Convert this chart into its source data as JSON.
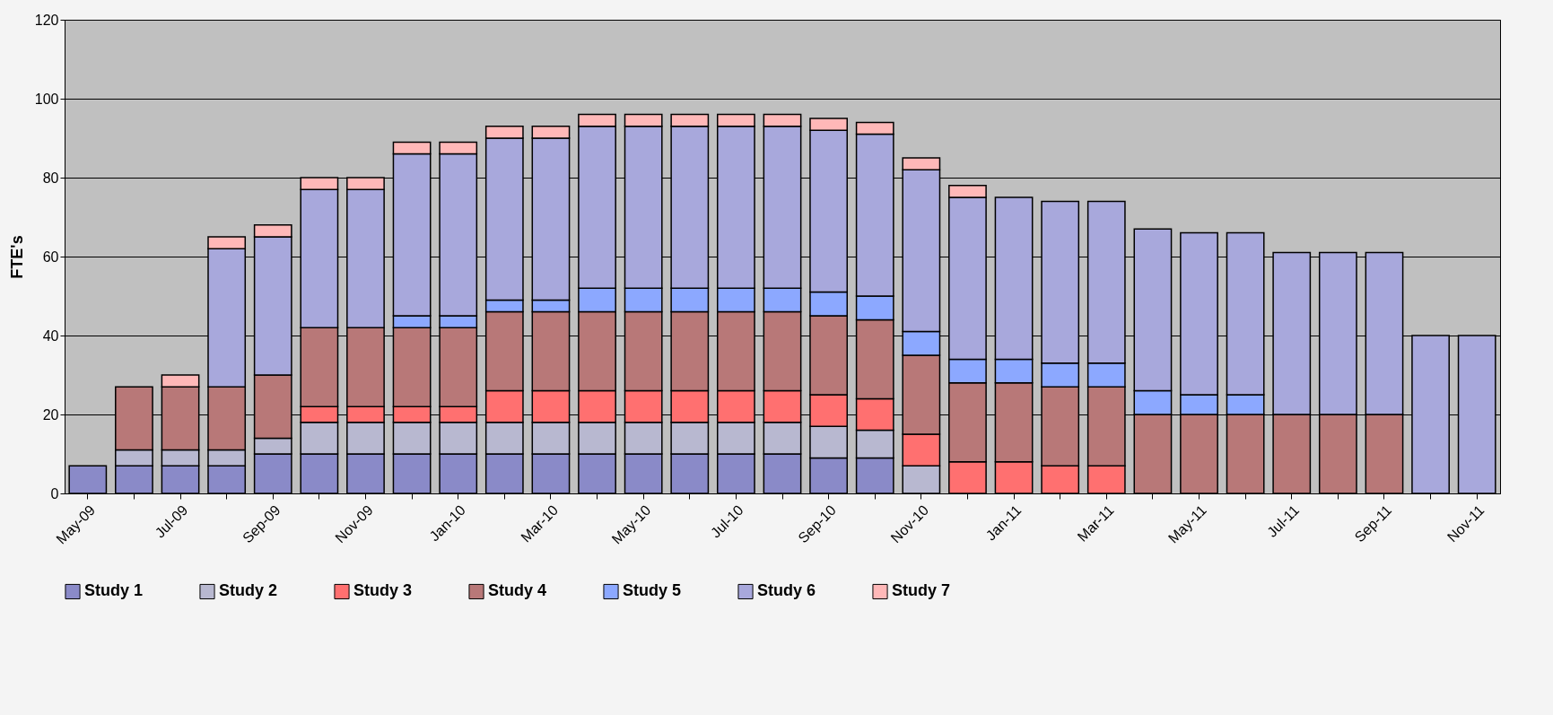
{
  "chart_data": {
    "type": "bar",
    "stacked": true,
    "ylabel": "FTE's",
    "categories": [
      "May-09",
      null,
      "Jul-09",
      null,
      "Sep-09",
      null,
      "Nov-09",
      null,
      "Jan-10",
      null,
      "Mar-10",
      null,
      "May-10",
      null,
      "Jul-10",
      null,
      "Sep-10",
      null,
      "Nov-10",
      null,
      "Jan-11",
      null,
      "Mar-11",
      null,
      "May-11",
      null,
      "Jul-11",
      null,
      "Sep-11",
      null,
      "Nov-11"
    ],
    "series": [
      {
        "name": "Study 1",
        "color": "#8a8ac8",
        "values": [
          7,
          7,
          7,
          7,
          10,
          10,
          10,
          10,
          10,
          10,
          10,
          10,
          10,
          10,
          10,
          10,
          9,
          9,
          null,
          null,
          null,
          null,
          null,
          null,
          null,
          null,
          null,
          null,
          null,
          null,
          null
        ]
      },
      {
        "name": "Study 2",
        "color": "#b8b8d0",
        "values": [
          null,
          4,
          4,
          4,
          4,
          8,
          8,
          8,
          8,
          8,
          8,
          8,
          8,
          8,
          8,
          8,
          8,
          7,
          7,
          null,
          null,
          null,
          null,
          null,
          null,
          null,
          null,
          null,
          null,
          null,
          null
        ]
      },
      {
        "name": "Study 3",
        "color": "#ff7070",
        "values": [
          null,
          null,
          null,
          null,
          null,
          4,
          4,
          4,
          4,
          8,
          8,
          8,
          8,
          8,
          8,
          8,
          8,
          8,
          8,
          8,
          8,
          7,
          7,
          null,
          null,
          null,
          null,
          null,
          null,
          null,
          null
        ]
      },
      {
        "name": "Study 4",
        "color": "#b87878",
        "values": [
          null,
          16,
          16,
          16,
          16,
          20,
          20,
          20,
          20,
          20,
          20,
          20,
          20,
          20,
          20,
          20,
          20,
          20,
          20,
          20,
          20,
          20,
          20,
          20,
          20,
          20,
          20,
          20,
          20,
          null,
          null
        ]
      },
      {
        "name": "Study 5",
        "color": "#8ca8ff",
        "values": [
          null,
          null,
          null,
          null,
          null,
          null,
          null,
          3,
          3,
          3,
          3,
          6,
          6,
          6,
          6,
          6,
          6,
          6,
          6,
          6,
          6,
          6,
          6,
          6,
          5,
          5,
          null,
          null,
          null,
          null,
          null
        ]
      },
      {
        "name": "Study 6",
        "color": "#a8a8dc",
        "values": [
          null,
          null,
          null,
          35,
          35,
          35,
          35,
          41,
          41,
          41,
          41,
          41,
          41,
          41,
          41,
          41,
          41,
          41,
          41,
          41,
          41,
          41,
          41,
          41,
          41,
          41,
          41,
          41,
          41,
          40,
          40
        ]
      },
      {
        "name": "Study 7",
        "color": "#ffb8b8",
        "values": [
          null,
          null,
          3,
          3,
          3,
          3,
          3,
          3,
          3,
          3,
          3,
          3,
          3,
          3,
          3,
          3,
          3,
          3,
          3,
          3,
          null,
          null,
          null,
          null,
          null,
          null,
          null,
          null,
          null,
          null,
          null
        ]
      }
    ],
    "ylim": [
      0,
      120
    ],
    "yticks": [
      0,
      20,
      40,
      60,
      80,
      100,
      120
    ],
    "grid": "y",
    "legend": "bottom"
  }
}
